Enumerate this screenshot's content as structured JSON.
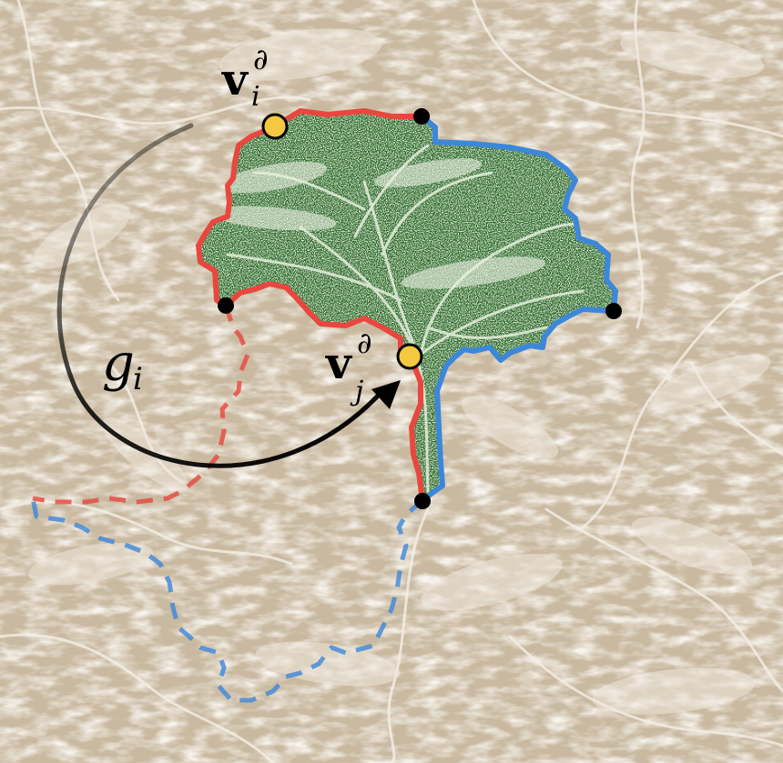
{
  "labels": {
    "vertex_i": {
      "base": "v",
      "superscript": "∂",
      "subscript": "i"
    },
    "vertex_j": {
      "base": "v",
      "superscript": "∂",
      "subscript": "j"
    },
    "map": {
      "base": "g",
      "subscript": "i"
    }
  },
  "colors": {
    "background": "#c9b9a0",
    "background_dark": "#a89478",
    "background_light": "#ece3d6",
    "tile_fill": "#2e6b2a",
    "tile_light": "#dfe9d2",
    "edge_red": "#e8473f",
    "edge_blue": "#3d87d9",
    "marked_vertex": "#f5c842",
    "corner_vertex": "#000000",
    "arrow": "#000000"
  }
}
